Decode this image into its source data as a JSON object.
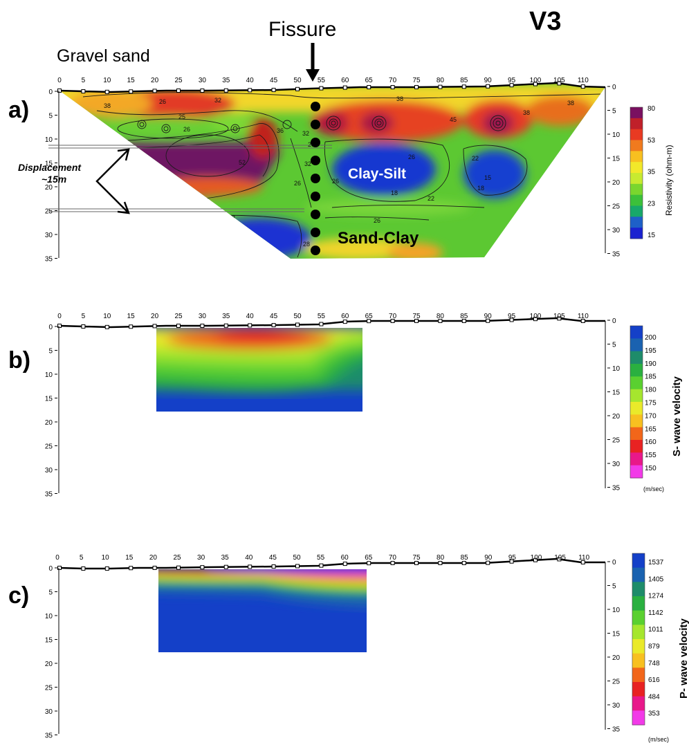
{
  "figure": {
    "title": "V3",
    "panel_labels": [
      "a)",
      "b)",
      "c)"
    ],
    "x_ticks": [
      "0",
      "5",
      "10",
      "15",
      "20",
      "25",
      "30",
      "35",
      "40",
      "45",
      "50",
      "55",
      "60",
      "65",
      "70",
      "75",
      "80",
      "85",
      "90",
      "95",
      "100",
      "105",
      "110"
    ],
    "depth_ticks": [
      "0",
      "5",
      "10",
      "15",
      "20",
      "25",
      "30",
      "35"
    ]
  },
  "panel_a": {
    "annotations": {
      "fissure": "Fissure",
      "gravel_sand": "Gravel sand",
      "displacement_line1": "Displacement",
      "displacement_line2": "~15m",
      "clay_silt": "Clay-Silt",
      "sand_clay": "Sand-Clay"
    },
    "contour_labels": [
      "38",
      "26",
      "32",
      "25",
      "26",
      "32",
      "26",
      "38",
      "36",
      "45",
      "38",
      "32",
      "26",
      "26",
      "22",
      "26",
      "18",
      "15",
      "22",
      "18",
      "26",
      "18",
      "52",
      "28",
      "38"
    ],
    "colorbar": {
      "label": "Resistivity (ohm-m)",
      "ticks": [
        "80",
        "53",
        "35",
        "23",
        "15"
      ],
      "colors": [
        "#7a1060",
        "#c0202a",
        "#e83a22",
        "#f07a1e",
        "#f8c020",
        "#f2e82a",
        "#c8ea30",
        "#7ad62e",
        "#3cc03a",
        "#18a86a",
        "#1e60c8",
        "#1a22d0"
      ]
    }
  },
  "panel_b": {
    "colorbar": {
      "label": "S- wave velocity",
      "unit": "(m/sec)",
      "ticks": [
        "200",
        "195",
        "190",
        "185",
        "180",
        "175",
        "170",
        "165",
        "160",
        "155",
        "150"
      ],
      "colors": [
        "#1440c8",
        "#1a62b0",
        "#1e8c6a",
        "#2ab040",
        "#5ad030",
        "#a6e62e",
        "#eaea2a",
        "#f8c020",
        "#f2661a",
        "#e82222",
        "#e8188a",
        "#f23ae8"
      ]
    }
  },
  "panel_c": {
    "colorbar": {
      "label": "P- wave velocity",
      "unit": "(m/sec)",
      "ticks": [
        "1537",
        "1405",
        "1274",
        "1142",
        "1011",
        "879",
        "748",
        "616",
        "484",
        "353"
      ],
      "colors": [
        "#1440c8",
        "#1a62b0",
        "#1e8c6a",
        "#2ab040",
        "#5ad030",
        "#a6e62e",
        "#eaea2a",
        "#f8c020",
        "#f2661a",
        "#e82222",
        "#e8188a",
        "#f23ae8"
      ]
    }
  }
}
